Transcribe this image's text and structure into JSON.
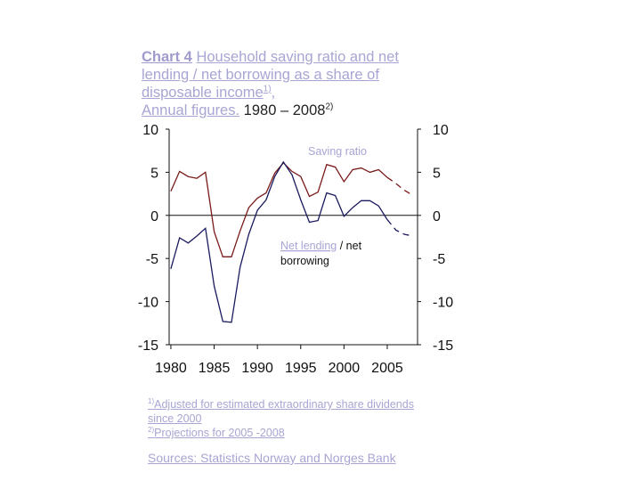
{
  "title": {
    "bold": "Chart 4",
    "line1": "Household saving ratio and net",
    "line2": "lending / net borrowing as a share of",
    "line3": "disposable income",
    "sup1": "1)",
    "line4_link": "Annual figures.",
    "line4_rest": "1980 – 2008",
    "sup2": "2)"
  },
  "footnotes": [
    {
      "mark": "1)",
      "text": "Adjusted for estimated extraordinary share dividends",
      "cont": "since 2000"
    },
    {
      "mark": "2)",
      "text": "Projections for 2005 -2008"
    }
  ],
  "sources": "Sources: Statistics Norway and Norges Bank",
  "colors": {
    "saving": "#7a1a1a",
    "lending": "#1a1a5e",
    "label": "#a7a5d3"
  },
  "chart_data": {
    "type": "line",
    "x_ticks": [
      1980,
      1985,
      1990,
      1995,
      2000,
      2005
    ],
    "xlim": [
      1979.8,
      2008.5
    ],
    "ylim": [
      -15,
      10
    ],
    "y_ticks_left": [
      "10",
      "5",
      "0",
      "-5",
      "-10",
      "-15"
    ],
    "y_ticks_right": [
      "10",
      "5",
      "0",
      "-5",
      "-10",
      "-15"
    ],
    "y_tick_values": [
      10,
      5,
      0,
      -5,
      -10,
      -15
    ],
    "projection_start": 2005,
    "series": [
      {
        "name": "Saving ratio",
        "x": [
          1980,
          1981,
          1982,
          1983,
          1984,
          1985,
          1986,
          1987,
          1988,
          1989,
          1990,
          1991,
          1992,
          1993,
          1994,
          1995,
          1996,
          1997,
          1998,
          1999,
          2000,
          2001,
          2002,
          2003,
          2004,
          2005,
          2006,
          2007,
          2008
        ],
        "values": [
          2.8,
          5.1,
          4.5,
          4.3,
          5.0,
          -1.9,
          -4.8,
          -4.8,
          -1.8,
          0.9,
          2.0,
          2.6,
          4.9,
          6.1,
          5.1,
          4.5,
          2.2,
          2.7,
          5.9,
          5.6,
          3.9,
          5.3,
          5.5,
          5.0,
          5.3,
          4.4,
          3.7,
          2.9,
          2.3
        ]
      },
      {
        "name": "Net lending / net borrowing",
        "x": [
          1980,
          1981,
          1982,
          1983,
          1984,
          1985,
          1986,
          1987,
          1988,
          1989,
          1990,
          1991,
          1992,
          1993,
          1994,
          1995,
          1996,
          1997,
          1998,
          1999,
          2000,
          2001,
          2002,
          2003,
          2004,
          2005,
          2006,
          2007,
          2008
        ],
        "values": [
          -6.2,
          -2.6,
          -3.2,
          -2.4,
          -1.5,
          -8.2,
          -12.3,
          -12.4,
          -6.0,
          -2.2,
          0.6,
          1.8,
          4.5,
          6.2,
          4.7,
          1.8,
          -0.8,
          -0.6,
          2.6,
          2.3,
          -0.1,
          0.9,
          1.7,
          1.7,
          1.1,
          -0.5,
          -1.7,
          -2.2,
          -2.4
        ]
      }
    ],
    "labels": {
      "saving": "Saving ratio",
      "lending_link": "Net lending",
      "lending_rest": "/ net",
      "lending_line2": "borrowing"
    }
  }
}
